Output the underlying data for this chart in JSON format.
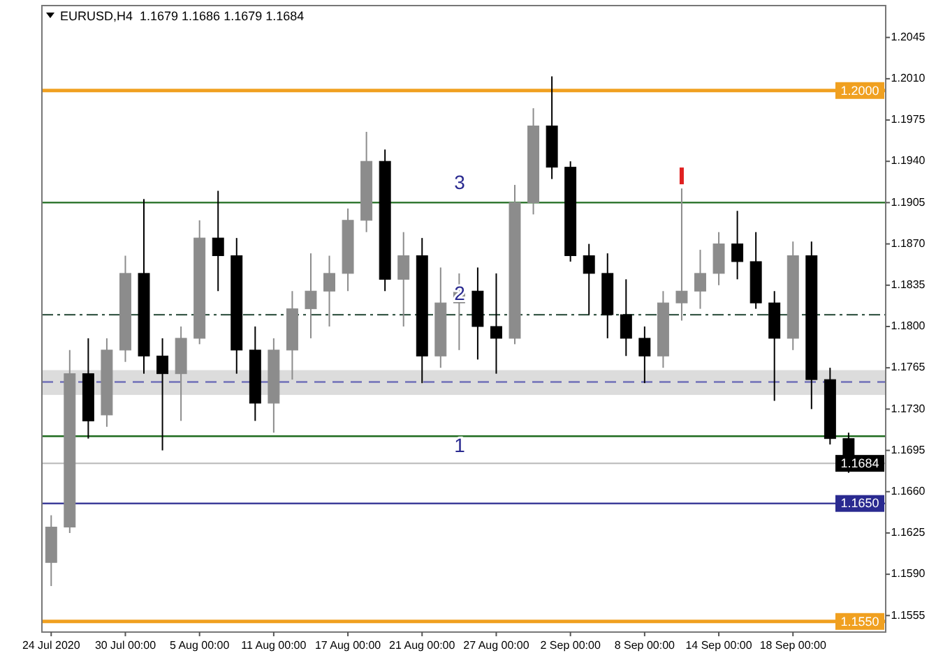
{
  "chart_data": {
    "type": "candlestick",
    "title": "EURUSD,H4  1.1679 1.1686 1.1679 1.1684",
    "categories": [
      "24 Jul 2020",
      null,
      null,
      null,
      "30 Jul 00:00",
      null,
      null,
      null,
      "5 Aug 00:00",
      null,
      null,
      null,
      "11 Aug 00:00",
      null,
      null,
      null,
      "17 Aug 00:00",
      null,
      null,
      null,
      "21 Aug 00:00",
      null,
      null,
      null,
      "27 Aug 00:00",
      null,
      null,
      null,
      "2 Sep 00:00",
      null,
      null,
      null,
      "8 Sep 00:00",
      null,
      null,
      null,
      "14 Sep 00:00",
      null,
      null,
      null,
      "18 Sep 00:00",
      null,
      null,
      null
    ],
    "ohlc": [
      [
        1.16,
        1.164,
        1.158,
        1.163
      ],
      [
        1.163,
        1.178,
        1.1625,
        1.176
      ],
      [
        1.176,
        1.179,
        1.1705,
        1.172
      ],
      [
        1.1725,
        1.179,
        1.1715,
        1.178
      ],
      [
        1.178,
        1.186,
        1.177,
        1.1845
      ],
      [
        1.1845,
        1.1908,
        1.176,
        1.1775
      ],
      [
        1.1775,
        1.179,
        1.1695,
        1.176
      ],
      [
        1.176,
        1.18,
        1.172,
        1.179
      ],
      [
        1.179,
        1.189,
        1.1785,
        1.1875
      ],
      [
        1.1875,
        1.1915,
        1.183,
        1.186
      ],
      [
        1.186,
        1.1875,
        1.176,
        1.178
      ],
      [
        1.178,
        1.18,
        1.172,
        1.1735
      ],
      [
        1.1735,
        1.179,
        1.171,
        1.178
      ],
      [
        1.178,
        1.183,
        1.1755,
        1.1815
      ],
      [
        1.1815,
        1.1862,
        1.179,
        1.183
      ],
      [
        1.183,
        1.186,
        1.18,
        1.1845
      ],
      [
        1.1845,
        1.19,
        1.183,
        1.189
      ],
      [
        1.189,
        1.1965,
        1.188,
        1.194
      ],
      [
        1.194,
        1.195,
        1.183,
        1.184
      ],
      [
        1.184,
        1.188,
        1.18,
        1.186
      ],
      [
        1.186,
        1.1875,
        1.1752,
        1.1775
      ],
      [
        1.1775,
        1.185,
        1.1765,
        1.182
      ],
      [
        1.182,
        1.1845,
        1.178,
        1.183
      ],
      [
        1.183,
        1.185,
        1.1772,
        1.18
      ],
      [
        1.18,
        1.1845,
        1.176,
        1.179
      ],
      [
        1.179,
        1.192,
        1.1785,
        1.1905
      ],
      [
        1.1905,
        1.1985,
        1.1895,
        1.197
      ],
      [
        1.197,
        1.2012,
        1.1925,
        1.1935
      ],
      [
        1.1935,
        1.194,
        1.1855,
        1.186
      ],
      [
        1.186,
        1.187,
        1.181,
        1.1845
      ],
      [
        1.1845,
        1.1862,
        1.179,
        1.181
      ],
      [
        1.181,
        1.184,
        1.1775,
        1.179
      ],
      [
        1.179,
        1.18,
        1.1752,
        1.1775
      ],
      [
        1.1775,
        1.183,
        1.1765,
        1.182
      ],
      [
        1.182,
        1.1917,
        1.1805,
        1.183
      ],
      [
        1.183,
        1.1865,
        1.1815,
        1.1845
      ],
      [
        1.1845,
        1.188,
        1.1835,
        1.187
      ],
      [
        1.187,
        1.1898,
        1.184,
        1.1855
      ],
      [
        1.1855,
        1.188,
        1.1815,
        1.182
      ],
      [
        1.182,
        1.183,
        1.1737,
        1.179
      ],
      [
        1.179,
        1.1872,
        1.178,
        1.186
      ],
      [
        1.186,
        1.1872,
        1.173,
        1.1755
      ],
      [
        1.1755,
        1.1765,
        1.17,
        1.1705
      ],
      [
        1.1705,
        1.171,
        1.1676,
        1.1684
      ]
    ],
    "colors": [
      "#8c8c8c",
      "#8c8c8c",
      "#000000",
      "#8c8c8c",
      "#8c8c8c",
      "#000000",
      "#000000",
      "#8c8c8c",
      "#8c8c8c",
      "#000000",
      "#000000",
      "#000000",
      "#8c8c8c",
      "#8c8c8c",
      "#8c8c8c",
      "#8c8c8c",
      "#8c8c8c",
      "#8c8c8c",
      "#000000",
      "#8c8c8c",
      "#000000",
      "#8c8c8c",
      "#8c8c8c",
      "#000000",
      "#000000",
      "#8c8c8c",
      "#8c8c8c",
      "#000000",
      "#000000",
      "#000000",
      "#000000",
      "#000000",
      "#000000",
      "#8c8c8c",
      "#8c8c8c",
      "#8c8c8c",
      "#8c8c8c",
      "#000000",
      "#000000",
      "#000000",
      "#8c8c8c",
      "#000000",
      "#000000",
      "#000000"
    ],
    "ylim": [
      1.1541,
      1.2072
    ],
    "yticks": [
      {
        "value": 1.2045,
        "label": "1.2045"
      },
      {
        "value": 1.201,
        "label": "1.2010"
      },
      {
        "value": 1.1975,
        "label": "1.1975"
      },
      {
        "value": 1.194,
        "label": "1.1940"
      },
      {
        "value": 1.1905,
        "label": "1.1905"
      },
      {
        "value": 1.187,
        "label": "1.1870"
      },
      {
        "value": 1.1835,
        "label": "1.1835"
      },
      {
        "value": 1.18,
        "label": "1.1800"
      },
      {
        "value": 1.1765,
        "label": "1.1765"
      },
      {
        "value": 1.173,
        "label": "1.1730"
      },
      {
        "value": 1.1695,
        "label": "1.1695"
      },
      {
        "value": 1.166,
        "label": "1.1660"
      },
      {
        "value": 1.1625,
        "label": "1.1625"
      },
      {
        "value": 1.159,
        "label": "1.1590"
      },
      {
        "value": 1.1555,
        "label": "1.1555"
      }
    ],
    "ref_lines": [
      {
        "axis": "y",
        "value": 1.2,
        "label": "1.2000",
        "color": "#f0a020",
        "line_style": "solid"
      },
      {
        "axis": "y",
        "value": 1.1905,
        "color": "#1e6b1e",
        "line_style": "solid"
      },
      {
        "axis": "y",
        "value": 1.181,
        "color": "#3a5a4a",
        "line_style": "dashdot"
      },
      {
        "axis": "y",
        "value": 1.1753,
        "color": "#7070b8",
        "line_style": "dashed"
      },
      {
        "axis": "y",
        "value": 1.1707,
        "color": "#1e6b1e",
        "line_style": "solid"
      },
      {
        "axis": "y",
        "value": 1.1684,
        "label": "1.1684",
        "color": "#c0c0c0",
        "line_style": "solid"
      },
      {
        "axis": "y",
        "value": 1.165,
        "label": "1.1650",
        "color": "#2a2a90",
        "line_style": "solid"
      },
      {
        "axis": "y",
        "value": 1.155,
        "label": "1.1550",
        "color": "#f0a020",
        "line_style": "solid"
      }
    ],
    "bands": [
      {
        "axis": "y",
        "from": 1.1742,
        "to": 1.1763,
        "color": "#dcdcdc"
      }
    ],
    "annotations": [
      "3",
      "2",
      "1"
    ]
  }
}
